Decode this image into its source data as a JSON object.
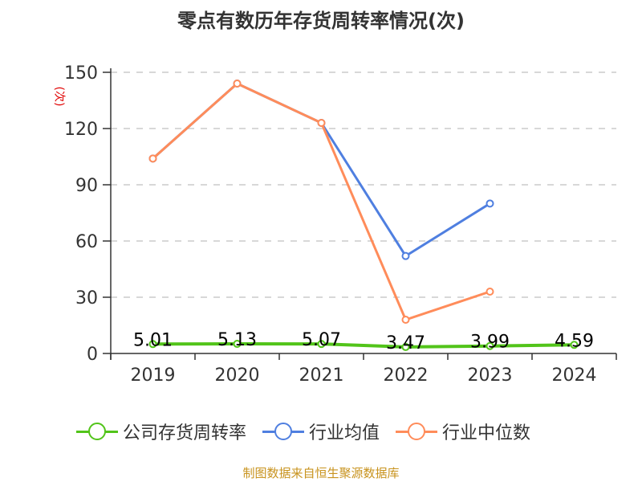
{
  "title": "零点有数历年存货周转率情况(次)",
  "unit_label": "(次)",
  "source": "制图数据来自恒生聚源数据库",
  "colors": {
    "company": "#52c41a",
    "industry_avg": "#4f7fe0",
    "industry_median": "#ff8c5a",
    "grid": "#cccccc",
    "axis": "#333333",
    "source": "#c8931e"
  },
  "legend": [
    {
      "label": "公司存货周转率",
      "color": "#52c41a"
    },
    {
      "label": "行业均值",
      "color": "#4f7fe0"
    },
    {
      "label": "行业中位数",
      "color": "#ff8c5a"
    }
  ],
  "chart_data": {
    "type": "line",
    "title": "零点有数历年存货周转率情况(次)",
    "xlabel": "",
    "ylabel": "(次)",
    "categories": [
      "2019",
      "2020",
      "2021",
      "2022",
      "2023",
      "2024"
    ],
    "ylim": [
      0,
      150
    ],
    "yticks": [
      0,
      30,
      60,
      90,
      120,
      150
    ],
    "grid": true,
    "legend_position": "bottom",
    "series": [
      {
        "name": "公司存货周转率",
        "values": [
          5.01,
          5.13,
          5.07,
          3.47,
          3.99,
          4.59
        ],
        "data_labels": [
          "5.01",
          "5.13",
          "5.07",
          "3.47",
          "3.99",
          "4.59"
        ]
      },
      {
        "name": "行业均值",
        "values": [
          104,
          144,
          123,
          52,
          80,
          null
        ]
      },
      {
        "name": "行业中位数",
        "values": [
          104,
          144,
          123,
          18,
          33,
          null
        ]
      }
    ]
  }
}
